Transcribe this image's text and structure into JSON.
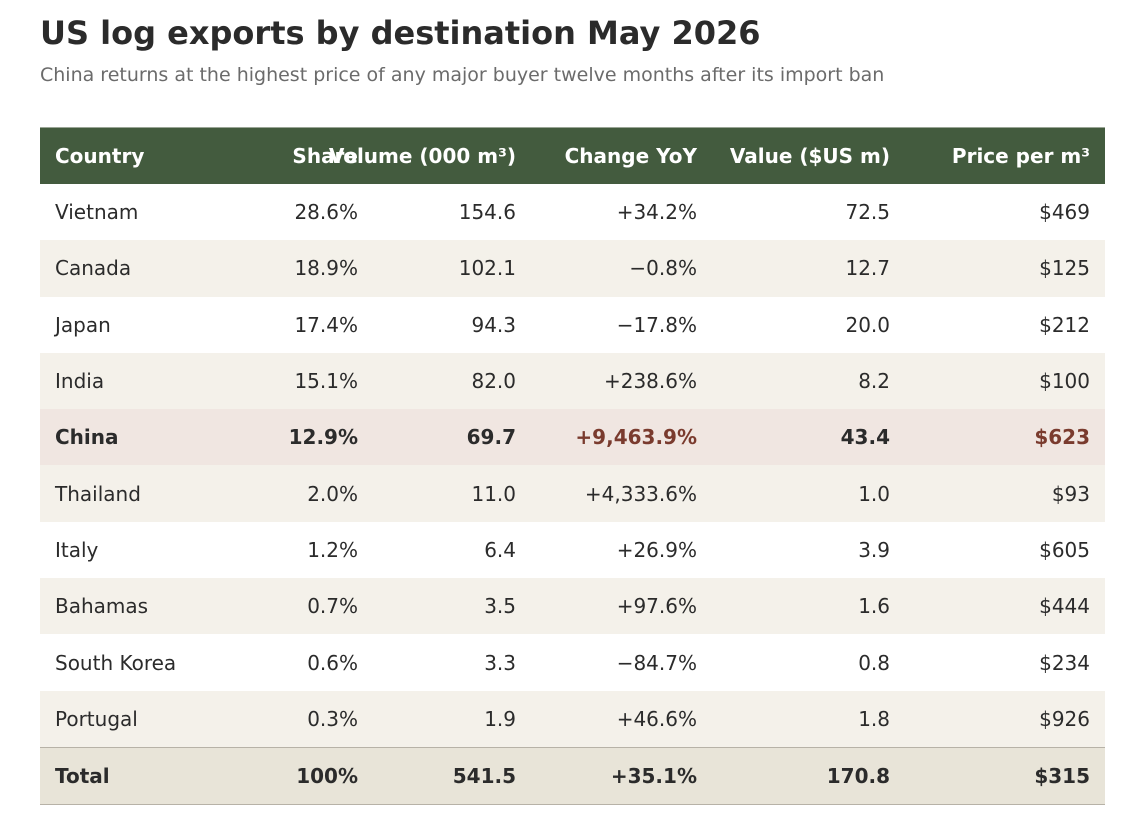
{
  "title": "US log exports by destination May 2026",
  "subtitle": "China returns at the highest price of any major buyer twelve months after its import ban",
  "colors": {
    "header_bg": "#435b3e",
    "highlight_bg": "#f0e6e1",
    "highlight_text": "#7a3b2e",
    "alt_row_bg": "#f4f1ea",
    "total_bg": "#e8e4d8"
  },
  "chart_data": {
    "type": "table",
    "columns": [
      "Country",
      "Share",
      "Volume (000 m³)",
      "Change YoY",
      "Value ($US m)",
      "Price per m³"
    ],
    "rows": [
      [
        "Vietnam",
        "28.6%",
        "154.6",
        "+34.2%",
        "72.5",
        "$469"
      ],
      [
        "Canada",
        "18.9%",
        "102.1",
        "−0.8%",
        "12.7",
        "$125"
      ],
      [
        "Japan",
        "17.4%",
        "94.3",
        "−17.8%",
        "20.0",
        "$212"
      ],
      [
        "India",
        "15.1%",
        "82.0",
        "+238.6%",
        "8.2",
        "$100"
      ],
      [
        "China",
        "12.9%",
        "69.7",
        "+9,463.9%",
        "43.4",
        "$623"
      ],
      [
        "Thailand",
        "2.0%",
        "11.0",
        "+4,333.6%",
        "1.0",
        "$93"
      ],
      [
        "Italy",
        "1.2%",
        "6.4",
        "+26.9%",
        "3.9",
        "$605"
      ],
      [
        "Bahamas",
        "0.7%",
        "3.5",
        "+97.6%",
        "1.6",
        "$444"
      ],
      [
        "South Korea",
        "0.6%",
        "3.3",
        "−84.7%",
        "0.8",
        "$234"
      ],
      [
        "Portugal",
        "0.3%",
        "1.9",
        "+46.6%",
        "1.8",
        "$926"
      ]
    ],
    "total": [
      "Total",
      "100%",
      "541.5",
      "+35.1%",
      "170.8",
      "$315"
    ],
    "highlight_row": "China"
  }
}
